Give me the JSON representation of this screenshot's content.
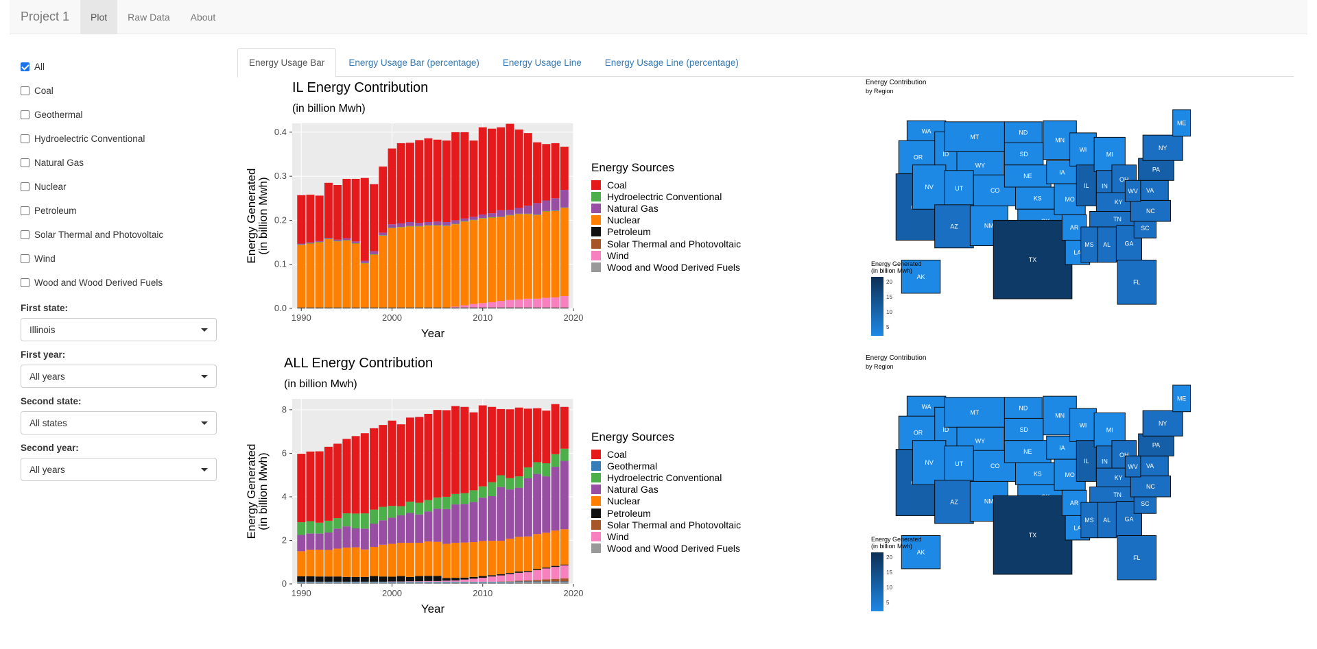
{
  "navbar": {
    "brand": "Project 1",
    "items": [
      {
        "label": "Plot",
        "active": true
      },
      {
        "label": "Raw Data",
        "active": false
      },
      {
        "label": "About",
        "active": false
      }
    ]
  },
  "sidebar": {
    "checkboxes": [
      {
        "label": "All",
        "checked": true
      },
      {
        "label": "Coal",
        "checked": false
      },
      {
        "label": "Geothermal",
        "checked": false
      },
      {
        "label": "Hydroelectric Conventional",
        "checked": false
      },
      {
        "label": "Natural Gas",
        "checked": false
      },
      {
        "label": "Nuclear",
        "checked": false
      },
      {
        "label": "Petroleum",
        "checked": false
      },
      {
        "label": "Solar Thermal and Photovoltaic",
        "checked": false
      },
      {
        "label": "Wind",
        "checked": false
      },
      {
        "label": "Wood and Wood Derived Fuels",
        "checked": false
      }
    ],
    "selects": [
      {
        "label": "First state:",
        "value": "Illinois"
      },
      {
        "label": "First year:",
        "value": "All years"
      },
      {
        "label": "Second state:",
        "value": "All states"
      },
      {
        "label": "Second year:",
        "value": "All years"
      }
    ]
  },
  "tabs": [
    {
      "label": "Energy Usage Bar",
      "active": true
    },
    {
      "label": "Energy Usage Bar (percentage)",
      "active": false
    },
    {
      "label": "Energy Usage Line",
      "active": false
    },
    {
      "label": "Energy Usage Line (percentage)",
      "active": false
    }
  ],
  "colors": {
    "Coal": "#e41a1c",
    "Geothermal": "#377eb8",
    "Hydroelectric Conventional": "#4daf4a",
    "Natural Gas": "#984ea3",
    "Nuclear": "#ff7f00",
    "Petroleum": "#111111",
    "Solar Thermal and Photovoltaic": "#a65628",
    "Wind": "#f781bf",
    "Wood and Wood Derived Fuels": "#999999"
  },
  "maps": [
    {
      "title": "Energy Contribution",
      "subtitle": "by Region",
      "legend_title": "Energy Generated",
      "legend_sub": "(in billion Mwh)",
      "ticks": [
        "20",
        "15",
        "10",
        "5"
      ]
    },
    {
      "title": "Energy Contribution",
      "subtitle": "by Region",
      "legend_title": "Energy Generated",
      "legend_sub": "(in billion Mwh)",
      "ticks": [
        "20",
        "15",
        "10",
        "5"
      ]
    }
  ],
  "chart_data": [
    {
      "type": "bar",
      "stacked": true,
      "title": "IL Energy Contribution",
      "subtitle": "(in billion Mwh)",
      "xlabel": "Year",
      "ylabel": "Energy Generated\n(in billion Mwh)",
      "xlim": [
        1989,
        2020
      ],
      "ylim": [
        0,
        0.42
      ],
      "xticks": [
        1990,
        2000,
        2010,
        2020
      ],
      "yticks": [
        "0.0",
        "0.1",
        "0.2",
        "0.3",
        "0.4"
      ],
      "legend_title": "Energy Sources",
      "legend": [
        "Coal",
        "Hydroelectric Conventional",
        "Natural Gas",
        "Nuclear",
        "Petroleum",
        "Solar Thermal and Photovoltaic",
        "Wind",
        "Wood and Wood Derived Fuels"
      ],
      "x": [
        1990,
        1991,
        1992,
        1993,
        1994,
        1995,
        1996,
        1997,
        1998,
        1999,
        2000,
        2001,
        2002,
        2003,
        2004,
        2005,
        2006,
        2007,
        2008,
        2009,
        2010,
        2011,
        2012,
        2013,
        2014,
        2015,
        2016,
        2017,
        2018,
        2019
      ],
      "series": [
        {
          "name": "Petroleum",
          "values": [
            0.002,
            0.002,
            0.002,
            0.002,
            0.002,
            0.002,
            0.002,
            0.002,
            0.002,
            0.002,
            0.002,
            0.002,
            0.002,
            0.002,
            0.002,
            0.002,
            0.002,
            0.002,
            0.002,
            0.002,
            0.002,
            0.002,
            0.002,
            0.002,
            0.002,
            0.002,
            0.002,
            0.002,
            0.002,
            0.002
          ]
        },
        {
          "name": "Wind",
          "values": [
            0,
            0,
            0,
            0,
            0,
            0,
            0,
            0,
            0,
            0,
            0,
            0,
            0,
            0,
            0,
            0,
            0,
            0.002,
            0.005,
            0.008,
            0.01,
            0.012,
            0.015,
            0.017,
            0.018,
            0.02,
            0.02,
            0.022,
            0.023,
            0.026
          ]
        },
        {
          "name": "Nuclear",
          "values": [
            0.142,
            0.145,
            0.148,
            0.155,
            0.15,
            0.152,
            0.145,
            0.1,
            0.12,
            0.163,
            0.18,
            0.182,
            0.184,
            0.184,
            0.186,
            0.186,
            0.185,
            0.187,
            0.19,
            0.19,
            0.192,
            0.192,
            0.19,
            0.192,
            0.194,
            0.192,
            0.19,
            0.196,
            0.196,
            0.2
          ]
        },
        {
          "name": "Hydroelectric Conventional",
          "values": [
            0.001,
            0.001,
            0.001,
            0.001,
            0.001,
            0.001,
            0.001,
            0.001,
            0.001,
            0.001,
            0.001,
            0.001,
            0.001,
            0.001,
            0.001,
            0.001,
            0.001,
            0.001,
            0.001,
            0.001,
            0.001,
            0.001,
            0.001,
            0.001,
            0.001,
            0.001,
            0.001,
            0.001,
            0.001,
            0.001
          ]
        },
        {
          "name": "Natural Gas",
          "values": [
            0.002,
            0.002,
            0.002,
            0.002,
            0.003,
            0.004,
            0.004,
            0.005,
            0.007,
            0.006,
            0.008,
            0.008,
            0.009,
            0.007,
            0.007,
            0.008,
            0.008,
            0.008,
            0.006,
            0.007,
            0.008,
            0.009,
            0.015,
            0.012,
            0.013,
            0.018,
            0.026,
            0.024,
            0.028,
            0.04
          ]
        },
        {
          "name": "Coal",
          "values": [
            0.11,
            0.108,
            0.103,
            0.125,
            0.124,
            0.135,
            0.142,
            0.188,
            0.152,
            0.15,
            0.172,
            0.182,
            0.18,
            0.188,
            0.19,
            0.186,
            0.185,
            0.2,
            0.196,
            0.173,
            0.198,
            0.192,
            0.188,
            0.195,
            0.178,
            0.165,
            0.138,
            0.128,
            0.125,
            0.098
          ]
        }
      ]
    },
    {
      "type": "bar",
      "stacked": true,
      "title": "ALL Energy Contribution",
      "subtitle": "(in billion Mwh)",
      "xlabel": "Year",
      "ylabel": "Energy Generated\n(in billion Mwh)",
      "xlim": [
        1989,
        2020
      ],
      "ylim": [
        0,
        8.5
      ],
      "xticks": [
        1990,
        2000,
        2010,
        2020
      ],
      "yticks": [
        "0",
        "2",
        "4",
        "6",
        "8"
      ],
      "legend_title": "Energy Sources",
      "legend": [
        "Coal",
        "Geothermal",
        "Hydroelectric Conventional",
        "Natural Gas",
        "Nuclear",
        "Petroleum",
        "Solar Thermal and Photovoltaic",
        "Wind",
        "Wood and Wood Derived Fuels"
      ],
      "x": [
        1990,
        1991,
        1992,
        1993,
        1994,
        1995,
        1996,
        1997,
        1998,
        1999,
        2000,
        2001,
        2002,
        2003,
        2004,
        2005,
        2006,
        2007,
        2008,
        2009,
        2010,
        2011,
        2012,
        2013,
        2014,
        2015,
        2016,
        2017,
        2018,
        2019
      ],
      "series": [
        {
          "name": "Wood and Wood Derived Fuels",
          "values": [
            0.07,
            0.07,
            0.07,
            0.07,
            0.07,
            0.07,
            0.07,
            0.07,
            0.07,
            0.07,
            0.07,
            0.07,
            0.07,
            0.07,
            0.07,
            0.07,
            0.07,
            0.07,
            0.07,
            0.07,
            0.07,
            0.07,
            0.07,
            0.07,
            0.08,
            0.08,
            0.08,
            0.08,
            0.08,
            0.08
          ]
        },
        {
          "name": "Geothermal",
          "values": [
            0.03,
            0.03,
            0.03,
            0.03,
            0.03,
            0.03,
            0.03,
            0.03,
            0.03,
            0.03,
            0.03,
            0.03,
            0.03,
            0.03,
            0.03,
            0.03,
            0.03,
            0.03,
            0.03,
            0.03,
            0.03,
            0.03,
            0.03,
            0.03,
            0.03,
            0.03,
            0.03,
            0.03,
            0.03,
            0.03
          ]
        },
        {
          "name": "Solar Thermal and Photovoltaic",
          "values": [
            0,
            0,
            0,
            0,
            0,
            0,
            0,
            0,
            0,
            0,
            0,
            0,
            0,
            0,
            0,
            0,
            0,
            0,
            0,
            0,
            0,
            0,
            0.01,
            0.02,
            0.04,
            0.05,
            0.07,
            0.1,
            0.12,
            0.14
          ]
        },
        {
          "name": "Wind",
          "values": [
            0,
            0,
            0,
            0,
            0,
            0,
            0,
            0,
            0,
            0,
            0.01,
            0.01,
            0.02,
            0.02,
            0.03,
            0.03,
            0.05,
            0.06,
            0.1,
            0.14,
            0.18,
            0.24,
            0.28,
            0.33,
            0.36,
            0.38,
            0.45,
            0.5,
            0.55,
            0.6
          ]
        },
        {
          "name": "Petroleum",
          "values": [
            0.25,
            0.25,
            0.24,
            0.24,
            0.24,
            0.22,
            0.22,
            0.22,
            0.26,
            0.24,
            0.22,
            0.25,
            0.2,
            0.24,
            0.24,
            0.24,
            0.12,
            0.12,
            0.09,
            0.08,
            0.08,
            0.06,
            0.05,
            0.05,
            0.06,
            0.05,
            0.05,
            0.04,
            0.05,
            0.04
          ]
        },
        {
          "name": "Nuclear",
          "values": [
            1.15,
            1.22,
            1.23,
            1.22,
            1.28,
            1.35,
            1.36,
            1.26,
            1.34,
            1.46,
            1.51,
            1.53,
            1.57,
            1.53,
            1.58,
            1.56,
            1.57,
            1.61,
            1.61,
            1.6,
            1.61,
            1.58,
            1.54,
            1.58,
            1.59,
            1.59,
            1.61,
            1.6,
            1.62,
            1.62
          ]
        },
        {
          "name": "Natural Gas",
          "values": [
            0.75,
            0.75,
            0.74,
            0.8,
            0.92,
            0.97,
            0.87,
            0.96,
            1.07,
            1.12,
            1.2,
            1.26,
            1.37,
            1.3,
            1.38,
            1.52,
            1.6,
            1.76,
            1.77,
            1.84,
            1.99,
            2.05,
            2.47,
            2.26,
            2.26,
            2.67,
            2.76,
            2.59,
            2.93,
            3.14
          ]
        },
        {
          "name": "Hydroelectric Conventional",
          "values": [
            0.58,
            0.56,
            0.5,
            0.54,
            0.48,
            0.6,
            0.68,
            0.7,
            0.64,
            0.62,
            0.54,
            0.42,
            0.52,
            0.54,
            0.52,
            0.52,
            0.56,
            0.48,
            0.5,
            0.54,
            0.52,
            0.64,
            0.54,
            0.52,
            0.52,
            0.5,
            0.54,
            0.6,
            0.58,
            0.56
          ]
        },
        {
          "name": "Coal",
          "values": [
            3.15,
            3.2,
            3.28,
            3.4,
            3.42,
            3.42,
            3.56,
            3.68,
            3.74,
            3.76,
            3.92,
            3.76,
            3.86,
            3.94,
            3.96,
            4.02,
            3.98,
            4.04,
            3.96,
            3.58,
            3.72,
            3.46,
            3.04,
            3.16,
            3.16,
            2.7,
            2.48,
            2.42,
            2.3,
            1.92
          ]
        }
      ]
    }
  ]
}
